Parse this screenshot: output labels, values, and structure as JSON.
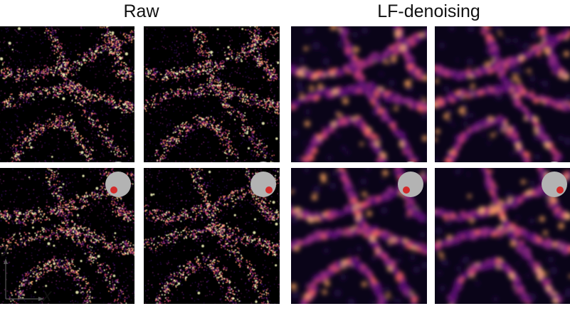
{
  "headers": {
    "raw": "Raw",
    "lf": "LF-denoising"
  },
  "axis_labels": {
    "y": "y",
    "x": "x"
  },
  "colormap": {
    "low": "#000004",
    "mid": "#781c6d",
    "high": "#fcffa4",
    "accent": "#d32b2b",
    "pupil": "#b3b3b3"
  },
  "panels": [
    {
      "id": "raw-tl",
      "type": "raw",
      "dot": "upper-right"
    },
    {
      "id": "raw-tr",
      "type": "raw",
      "dot": "upper-right"
    },
    {
      "id": "raw-bl",
      "type": "raw",
      "dot": "lower-left"
    },
    {
      "id": "raw-br",
      "type": "raw",
      "dot": "lower-right"
    },
    {
      "id": "lf-tl",
      "type": "lf",
      "dot": "upper-left"
    },
    {
      "id": "lf-tr",
      "type": "lf",
      "dot": "upper-right"
    },
    {
      "id": "lf-bl",
      "type": "lf",
      "dot": "lower-left"
    },
    {
      "id": "lf-br",
      "type": "lf",
      "dot": "lower-right"
    }
  ]
}
